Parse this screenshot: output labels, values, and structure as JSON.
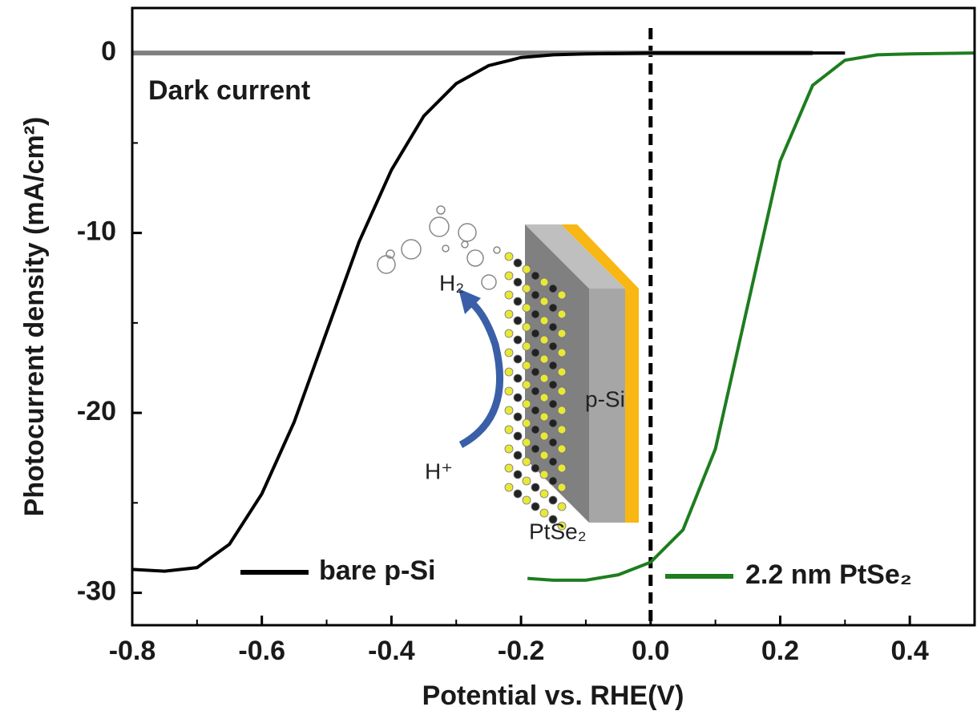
{
  "chart_data": {
    "type": "line",
    "xlabel": "Potential vs. RHE(V)",
    "ylabel": "Photocurrent density  (mA/cm²)",
    "xlim": [
      -0.8,
      0.5
    ],
    "ylim": [
      -31.8,
      2.5
    ],
    "xticks": [
      -0.8,
      -0.6,
      -0.4,
      -0.2,
      {
        "value": 0,
        "label": "0.0"
      },
      0.2,
      0.4
    ],
    "yticks": [
      0,
      -10,
      -20,
      -30
    ],
    "vlines": [
      0
    ],
    "series": [
      {
        "name": "Dark current",
        "color": "#808080",
        "x": [
          -0.8,
          -0.6,
          -0.4,
          -0.2,
          0.0,
          0.25
        ],
        "values": [
          0,
          0,
          0,
          0,
          0,
          0
        ]
      },
      {
        "name": "bare p-Si",
        "color": "#000000",
        "x": [
          -0.8,
          -0.75,
          -0.7,
          -0.65,
          -0.6,
          -0.55,
          -0.5,
          -0.45,
          -0.4,
          -0.35,
          -0.3,
          -0.25,
          -0.2,
          -0.15,
          -0.1,
          0.0,
          0.1,
          0.2,
          0.3
        ],
        "values": [
          -28.7,
          -28.8,
          -28.6,
          -27.3,
          -24.5,
          -20.5,
          -15.5,
          -10.5,
          -6.5,
          -3.5,
          -1.7,
          -0.7,
          -0.25,
          -0.1,
          -0.05,
          0,
          0,
          0,
          0
        ]
      },
      {
        "name": "2.2 nm PtSe₂",
        "color": "#1e7d1e",
        "x": [
          -0.19,
          -0.15,
          -0.1,
          -0.05,
          0.0,
          0.05,
          0.1,
          0.15,
          0.2,
          0.25,
          0.3,
          0.35,
          0.4,
          0.5
        ],
        "values": [
          -29.2,
          -29.3,
          -29.3,
          -29.0,
          -28.3,
          -26.5,
          -22,
          -14,
          -6,
          -1.8,
          -0.4,
          -0.1,
          -0.05,
          0
        ]
      }
    ],
    "inset": {
      "labels": [
        "H₂",
        "H⁺",
        "p-Si",
        "PtSe₂"
      ]
    }
  }
}
